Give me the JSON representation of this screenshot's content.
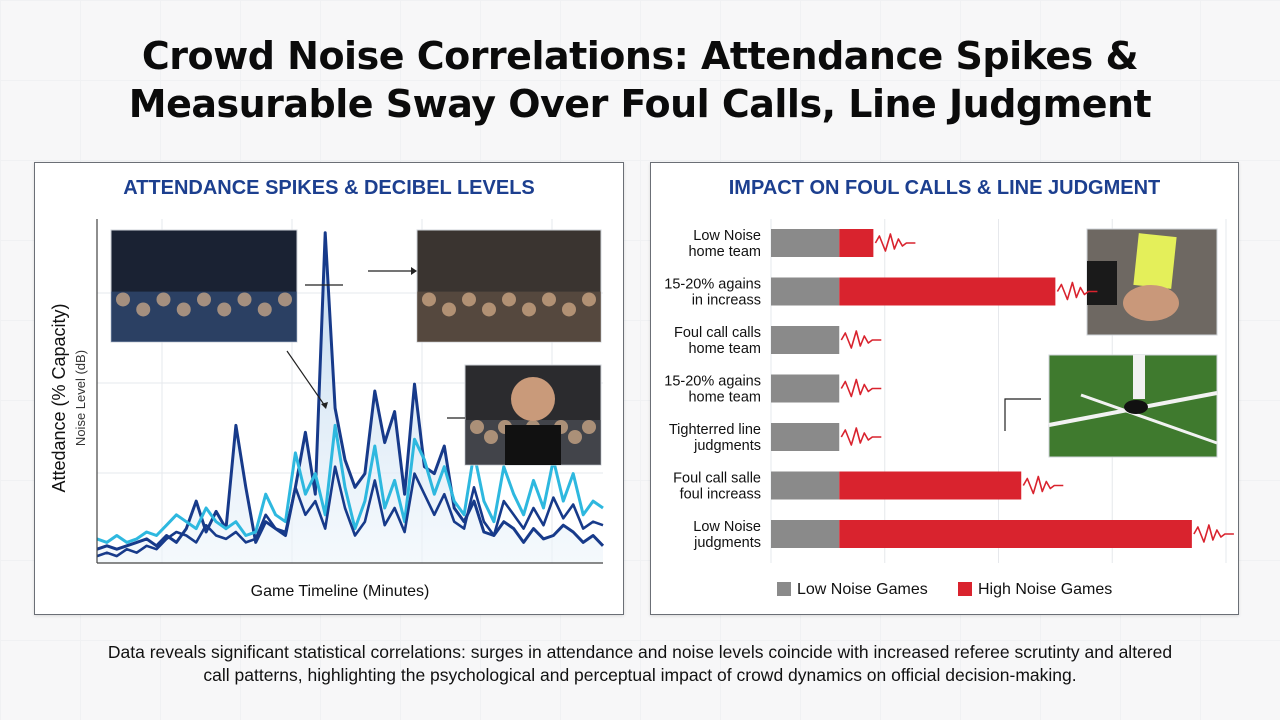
{
  "title_lines": [
    "Crowd Noise Correlations: Attendance Spikes &",
    "Measurable Sway Over Foul Calls, Line Judgment"
  ],
  "caption_lines": [
    "Data reveals significant statistical correlations: surges in attendance and noise levels coincide with increased referee scrutinty and altered",
    "call patterns, highlighting the psychological and perceptual impact of crowd dynamics on official decision-making."
  ],
  "chart_data": [
    {
      "type": "line",
      "title": "ATTENDANCE SPIKES & DECIBEL LEVELS",
      "xlabel": "Game Timeline (Minutes)",
      "ylabel": "Attedance (% Capacity)",
      "ylabel2": "Noise Level (dB)",
      "ylim": [
        0,
        100
      ],
      "grid": true,
      "colors": {
        "area": "#bcd6ee",
        "attendance": "#173a8a",
        "noise": "#2eb8df"
      },
      "series": [
        {
          "values": [
            4,
            5,
            4,
            5,
            6,
            7,
            5,
            8,
            6,
            10,
            18,
            9,
            15,
            10,
            40,
            22,
            6,
            12,
            10,
            8,
            22,
            38,
            20,
            96,
            45,
            30,
            22,
            26,
            50,
            35,
            44,
            20,
            52,
            28,
            26,
            34,
            16,
            12,
            18,
            9,
            8,
            12,
            10,
            6,
            10,
            7,
            8,
            11,
            9,
            6,
            8,
            5
          ]
        },
        {
          "values": [
            7,
            6,
            8,
            6,
            7,
            9,
            8,
            11,
            14,
            12,
            10,
            16,
            12,
            10,
            12,
            8,
            9,
            20,
            14,
            12,
            32,
            20,
            26,
            14,
            40,
            22,
            10,
            18,
            34,
            16,
            24,
            12,
            36,
            30,
            20,
            28,
            18,
            14,
            32,
            18,
            12,
            28,
            20,
            14,
            24,
            16,
            30,
            18,
            26,
            14,
            18,
            16
          ]
        },
        {
          "values": [
            2,
            3,
            2,
            4,
            3,
            5,
            4,
            7,
            9,
            8,
            6,
            11,
            8,
            7,
            9,
            6,
            7,
            14,
            10,
            9,
            22,
            14,
            18,
            10,
            28,
            16,
            8,
            12,
            24,
            11,
            16,
            9,
            26,
            20,
            14,
            20,
            12,
            10,
            22,
            12,
            8,
            18,
            14,
            10,
            16,
            11,
            19,
            13,
            17,
            10,
            12,
            11
          ]
        }
      ]
    },
    {
      "type": "bar",
      "title": "IMPACT ON FOUL CALLS & LINE JUDGMENT",
      "categories": [
        [
          "Low Noise",
          "home team"
        ],
        [
          "15-20% agains",
          "in increass"
        ],
        [
          "Foul call calls",
          "home team"
        ],
        [
          "15-20% agains",
          "home team"
        ],
        [
          "Tighterred line",
          "judgments"
        ],
        [
          "Foul call salle",
          "foul increass"
        ],
        [
          "Low Noise",
          "judgments"
        ]
      ],
      "series": [
        {
          "name": "Low Noise Games",
          "color": "#8a8a8a",
          "values": [
            12,
            12,
            12,
            12,
            12,
            12,
            12
          ]
        },
        {
          "name": "High Noise Games",
          "color": "#d9232e",
          "values": [
            6,
            38,
            0,
            0,
            0,
            32,
            62
          ]
        }
      ],
      "xlim": [
        0,
        80
      ],
      "grid": true
    }
  ]
}
